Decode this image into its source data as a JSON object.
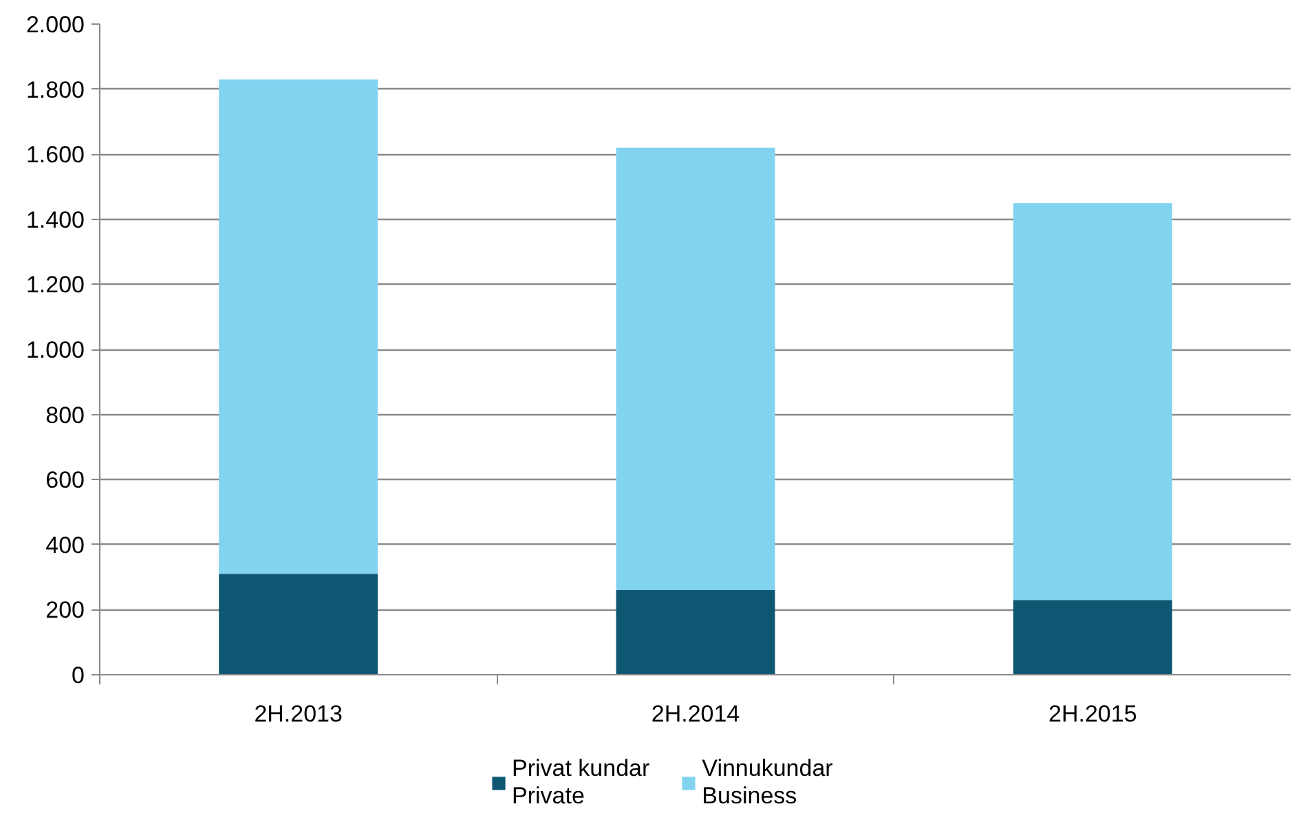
{
  "chart_data": {
    "type": "bar",
    "stacked": true,
    "categories": [
      "2H.2013",
      "2H.2014",
      "2H.2015"
    ],
    "series": [
      {
        "name": "Privat kundar\nPrivate",
        "color": "#0e5773",
        "values": [
          310,
          260,
          230
        ]
      },
      {
        "name": "Vinnukundar\nBusiness",
        "color": "#81d3f0",
        "values": [
          1520,
          1360,
          1220
        ]
      }
    ],
    "ylim": [
      0,
      2000
    ],
    "yticks": [
      0,
      200,
      400,
      600,
      800,
      {
        "value": 1000,
        "label": "1.000"
      },
      {
        "value": 1200,
        "label": "1.200"
      },
      {
        "value": 1400,
        "label": "1.400"
      },
      {
        "value": 1600,
        "label": "1.600"
      },
      {
        "value": 1800,
        "label": "1.800"
      },
      {
        "value": 2000,
        "label": "2.000"
      }
    ],
    "grid": "y",
    "legend": "bottom"
  }
}
